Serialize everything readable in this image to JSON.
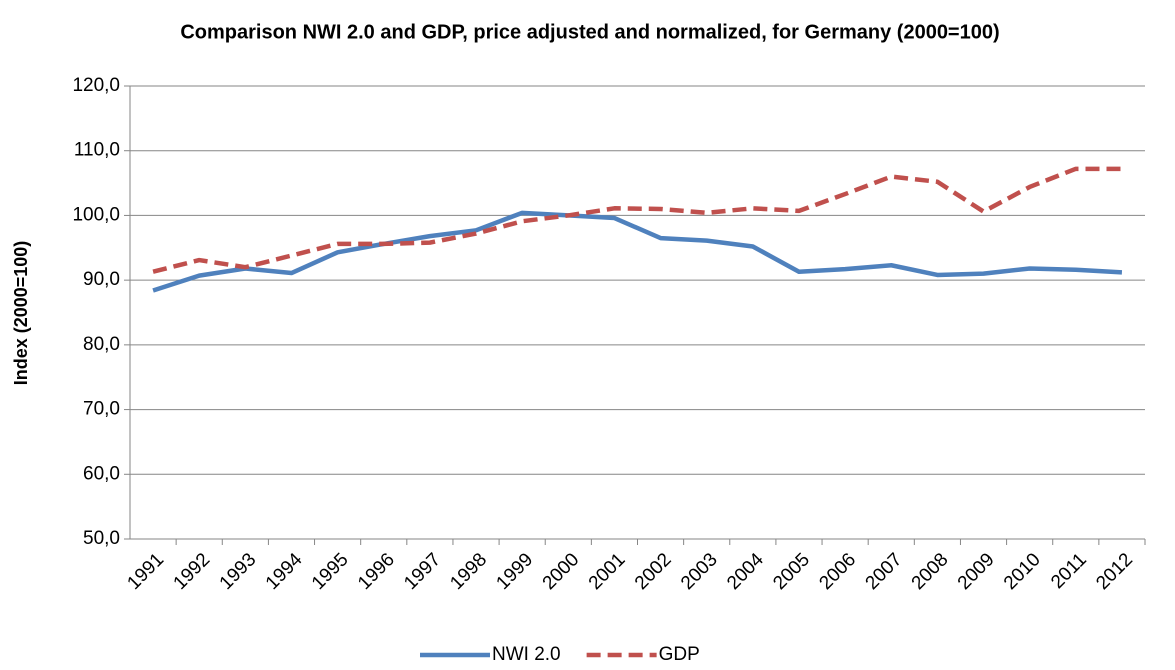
{
  "chart_data": {
    "type": "line",
    "title": "Comparison NWI 2.0 and GDP, price adjusted and normalized, for Germany (2000=100)",
    "y_label": "Index (2000=100)",
    "categories": [
      "1991",
      "1992",
      "1993",
      "1994",
      "1995",
      "1996",
      "1997",
      "1998",
      "1999",
      "2000",
      "2001",
      "2002",
      "2003",
      "2004",
      "2005",
      "2006",
      "2007",
      "2008",
      "2009",
      "2010",
      "2011",
      "2012"
    ],
    "series": [
      {
        "name": "NWI 2.0",
        "color": "#4f81bd",
        "dash": false,
        "values": [
          88.4,
          90.7,
          91.8,
          91.1,
          94.3,
          95.6,
          96.8,
          97.7,
          100.4,
          100.0,
          99.6,
          96.5,
          96.1,
          95.2,
          91.3,
          91.7,
          92.3,
          90.8,
          91.0,
          91.8,
          91.6,
          91.2
        ]
      },
      {
        "name": "GDP",
        "color": "#c0504d",
        "dash": true,
        "values": [
          91.3,
          93.1,
          92.0,
          93.8,
          95.6,
          95.6,
          95.8,
          97.2,
          99.1,
          100.0,
          101.1,
          101.0,
          100.4,
          101.1,
          100.7,
          103.3,
          106.0,
          105.2,
          100.6,
          104.4,
          107.2,
          107.2
        ]
      }
    ],
    "ylim": [
      50,
      120
    ],
    "yticks": [
      {
        "value": 50,
        "label": "50,0"
      },
      {
        "value": 60,
        "label": "60,0"
      },
      {
        "value": 70,
        "label": "70,0"
      },
      {
        "value": 80,
        "label": "80,0"
      },
      {
        "value": 90,
        "label": "90,0"
      },
      {
        "value": 100,
        "label": "100,0"
      },
      {
        "value": 110,
        "label": "110,0"
      },
      {
        "value": 120,
        "label": "120,0"
      }
    ],
    "grid": true,
    "legend": "bottom"
  }
}
